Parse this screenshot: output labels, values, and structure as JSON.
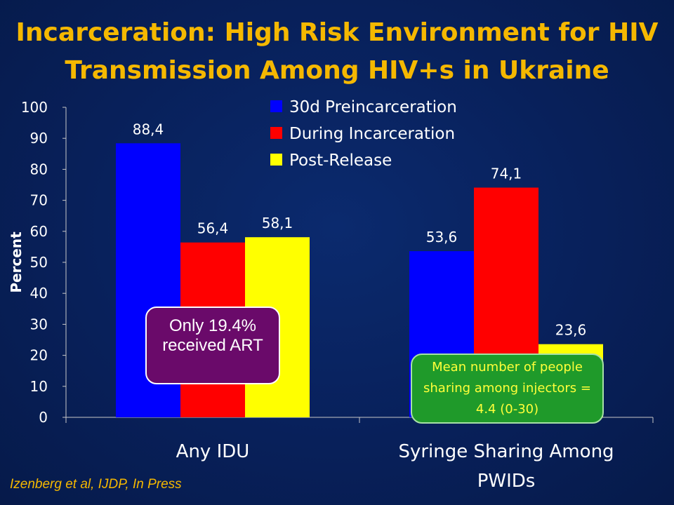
{
  "title": {
    "line1": "Incarceration:  High Risk Environment for HIV",
    "line2": "Transmission Among HIV+s in Ukraine"
  },
  "chart_data": {
    "type": "bar",
    "categories": [
      "Any IDU",
      "Syringe Sharing Among PWIDs"
    ],
    "series": [
      {
        "name": "30d Preincarceration",
        "values": [
          88.4,
          53.6
        ],
        "labels": [
          "88,4",
          "53,6"
        ],
        "color": "#0000ff"
      },
      {
        "name": "During Incarceration",
        "values": [
          56.4,
          74.1
        ],
        "labels": [
          "56,4",
          "74,1"
        ],
        "color": "#ff0000"
      },
      {
        "name": "Post-Release",
        "values": [
          58.1,
          23.6
        ],
        "labels": [
          "58,1",
          "23,6"
        ],
        "color": "#ffff00"
      }
    ],
    "ylabel": "Percent",
    "xlabel": "",
    "ylim": [
      0,
      100
    ],
    "yticks": [
      0,
      10,
      20,
      30,
      40,
      50,
      60,
      70,
      80,
      90,
      100
    ],
    "grid": false,
    "legend": "top-center"
  },
  "callouts": {
    "art": "Only 19.4% received ART",
    "sharing": "Mean number of people sharing among injectors = 4.4 (0-30)"
  },
  "footnote": "Izenberg et al, IJDP, In Press",
  "colors": {
    "background": "#08205a",
    "title": "#f5b800",
    "axis_text": "#ffffff"
  }
}
